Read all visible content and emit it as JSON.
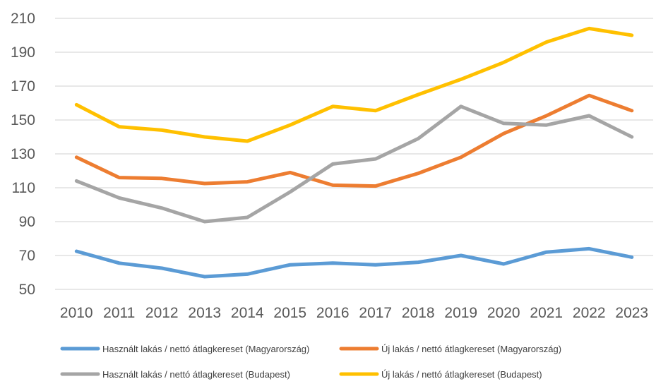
{
  "chart_data": {
    "type": "line",
    "title": "",
    "xlabel": "",
    "ylabel": "",
    "categories": [
      "2010",
      "2011",
      "2012",
      "2013",
      "2014",
      "2015",
      "2016",
      "2017",
      "2018",
      "2019",
      "2020",
      "2021",
      "2022",
      "2023"
    ],
    "ylim": [
      50,
      210
    ],
    "yticks": [
      50,
      70,
      90,
      110,
      130,
      150,
      170,
      190,
      210
    ],
    "grid": true,
    "legend_position": "bottom",
    "series": [
      {
        "name": "Használt lakás / nettó átlagkereset (Magyarország)",
        "color": "#5B9BD5",
        "values": [
          72.5,
          65.5,
          62.5,
          57.5,
          59,
          64.5,
          65.5,
          64.5,
          66,
          70,
          65,
          72,
          74,
          69
        ]
      },
      {
        "name": "Új lakás / nettó átlagkereset (Magyarország)",
        "color": "#ED7D31",
        "values": [
          128,
          116,
          115.5,
          112.5,
          113.5,
          119,
          111.5,
          111,
          118.5,
          128,
          142,
          152.5,
          164.5,
          155.5
        ]
      },
      {
        "name": "Használt lakás / nettó átlagkereset (Budapest)",
        "color": "#A5A5A5",
        "values": [
          114,
          104,
          98,
          90,
          92.5,
          107.5,
          124,
          127,
          139,
          158,
          148,
          147,
          152.5,
          140
        ]
      },
      {
        "name": "Új lakás / nettó átlagkereset (Budapest)",
        "color": "#FFC000",
        "values": [
          159,
          146,
          144,
          140,
          137.5,
          147,
          158,
          155.5,
          165,
          174,
          184,
          196,
          204,
          200
        ]
      }
    ]
  }
}
